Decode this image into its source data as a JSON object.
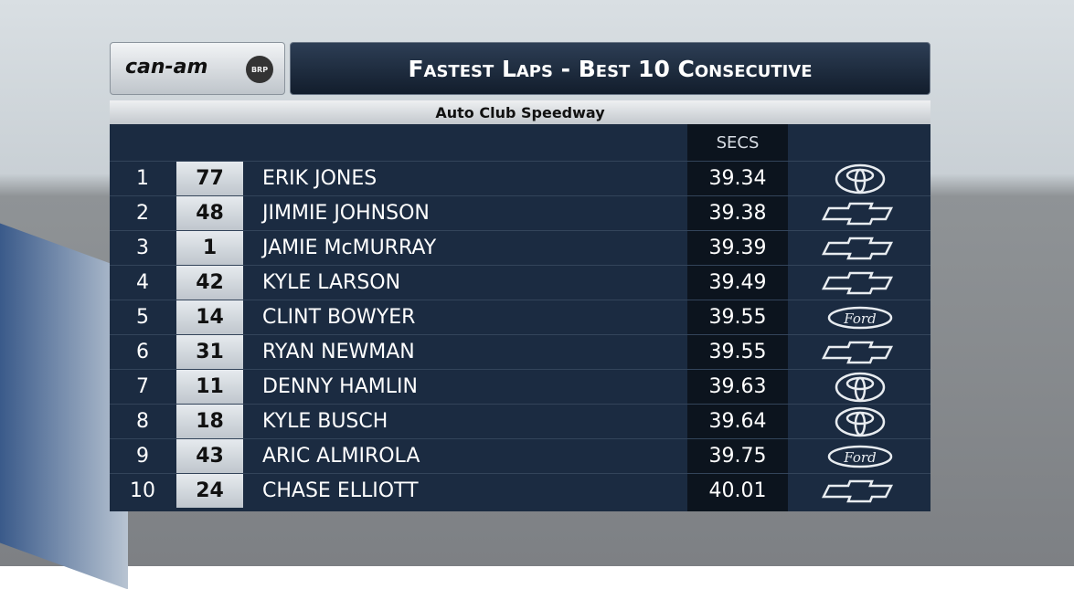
{
  "header": {
    "sponsor": "can-am",
    "sponsor_badge": "BRP",
    "title": "Fastest Laps - Best 10 Consecutive",
    "subtitle": "Auto Club Speedway"
  },
  "table": {
    "columns": {
      "time": "SECS"
    },
    "rows": [
      {
        "pos": 1,
        "number": 77,
        "driver": "ERIK JONES",
        "time": 39.34,
        "make": "Toyota"
      },
      {
        "pos": 2,
        "number": 48,
        "driver": "JIMMIE JOHNSON",
        "time": 39.38,
        "make": "Chevrolet"
      },
      {
        "pos": 3,
        "number": 1,
        "driver": "JAMIE McMURRAY",
        "time": 39.39,
        "make": "Chevrolet"
      },
      {
        "pos": 4,
        "number": 42,
        "driver": "KYLE LARSON",
        "time": 39.49,
        "make": "Chevrolet"
      },
      {
        "pos": 5,
        "number": 14,
        "driver": "CLINT BOWYER",
        "time": 39.55,
        "make": "Ford"
      },
      {
        "pos": 6,
        "number": 31,
        "driver": "RYAN NEWMAN",
        "time": 39.55,
        "make": "Chevrolet"
      },
      {
        "pos": 7,
        "number": 11,
        "driver": "DENNY HAMLIN",
        "time": 39.63,
        "make": "Toyota"
      },
      {
        "pos": 8,
        "number": 18,
        "driver": "KYLE BUSCH",
        "time": 39.64,
        "make": "Toyota"
      },
      {
        "pos": 9,
        "number": 43,
        "driver": "ARIC ALMIROLA",
        "time": 39.75,
        "make": "Ford"
      },
      {
        "pos": 10,
        "number": 24,
        "driver": "CHASE ELLIOTT",
        "time": 40.01,
        "make": "Chevrolet"
      }
    ]
  }
}
